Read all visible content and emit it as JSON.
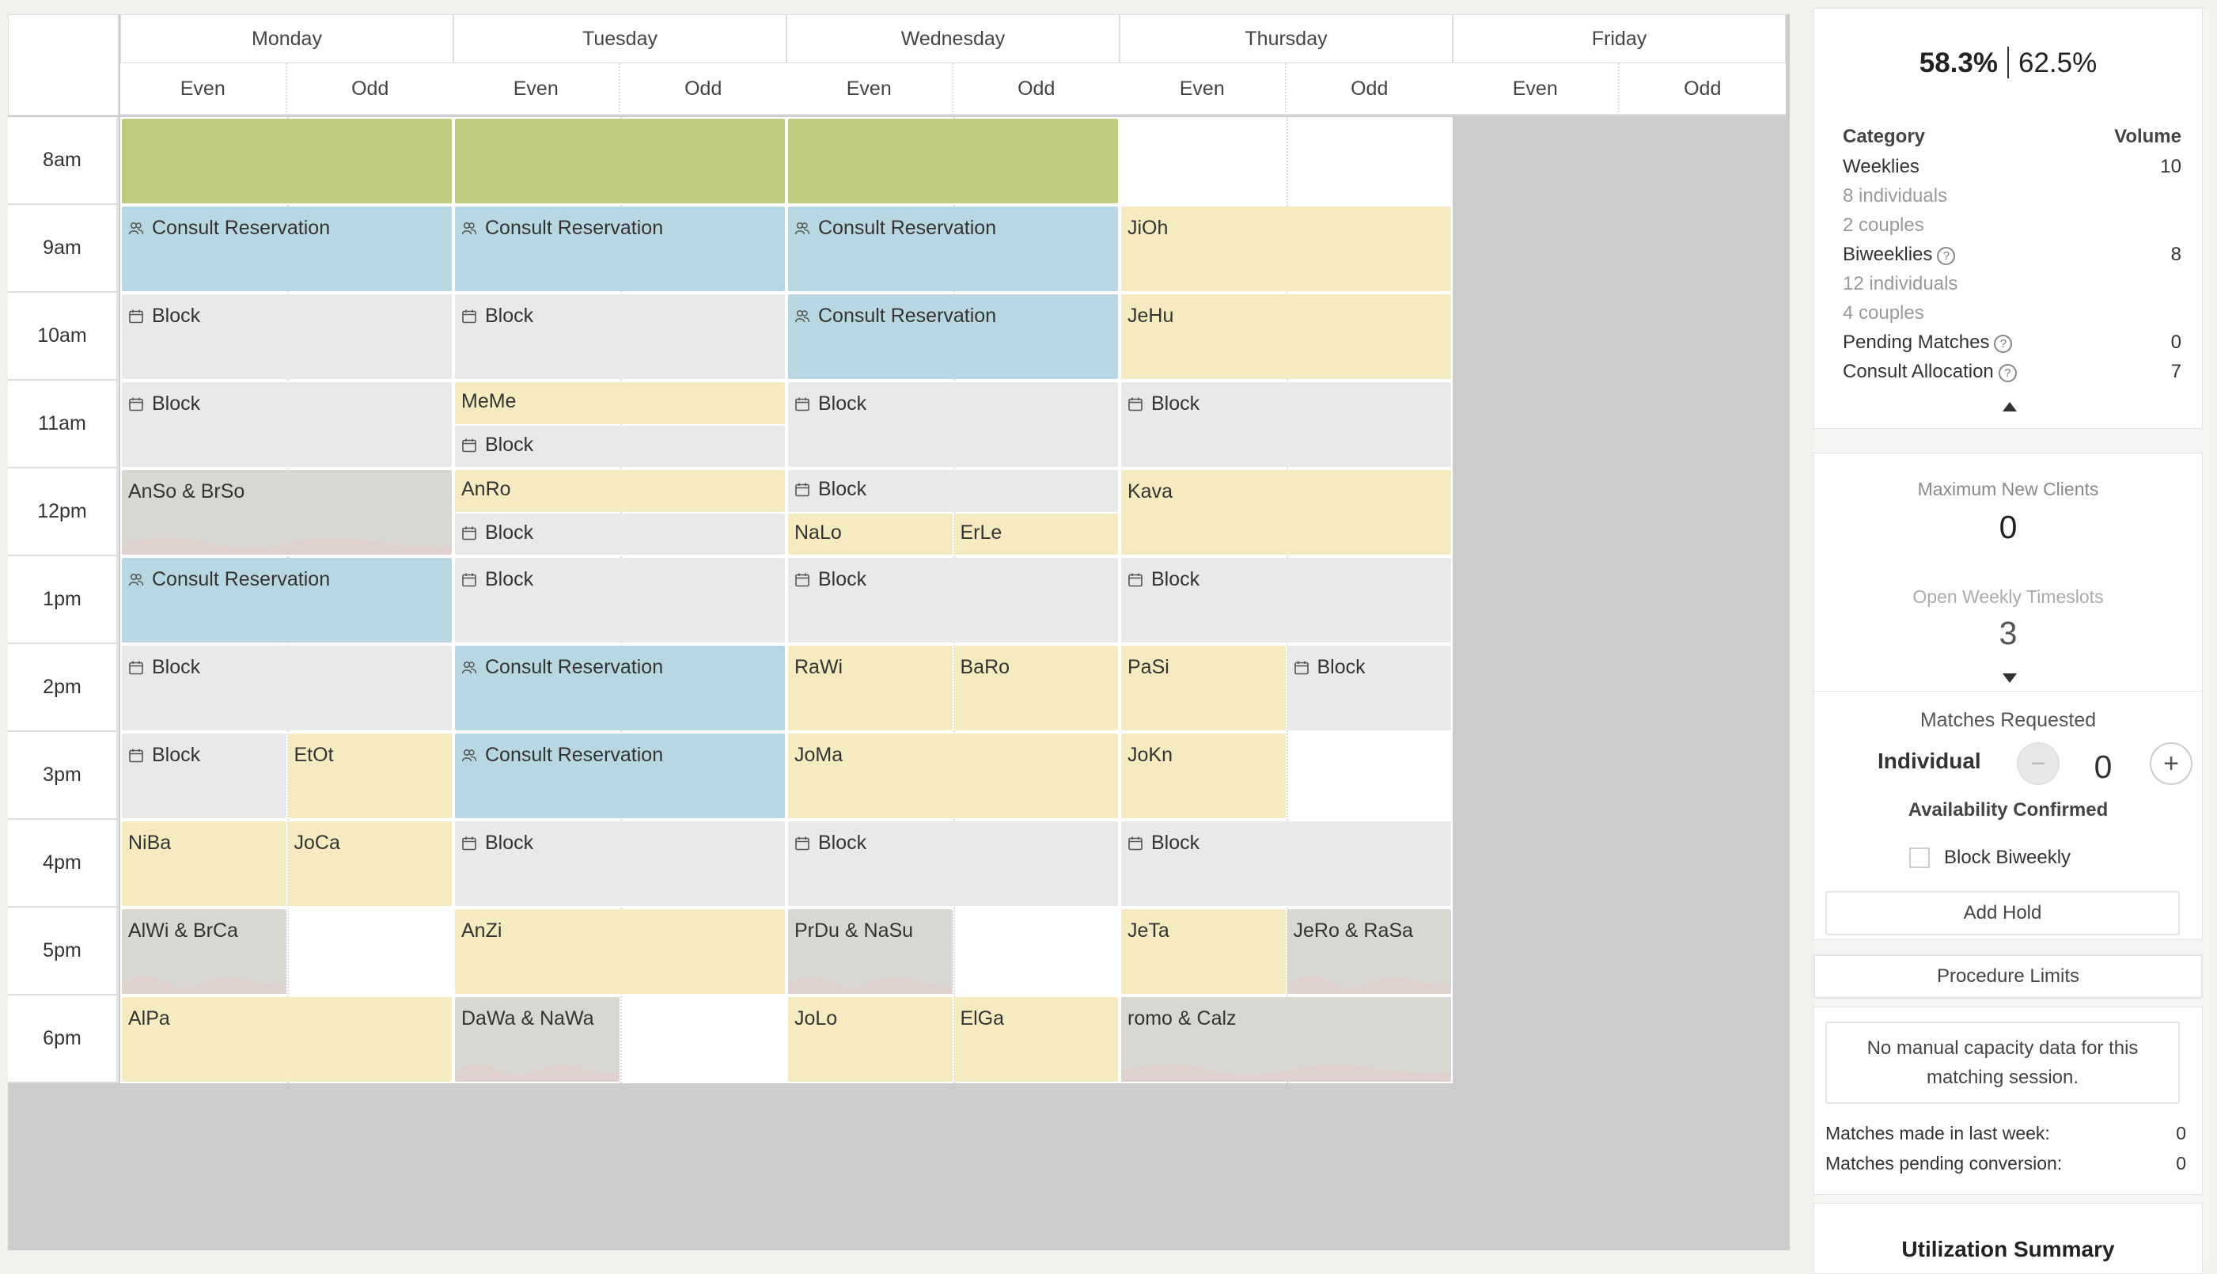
{
  "calendar": {
    "days": [
      "Monday",
      "Tuesday",
      "Wednesday",
      "Thursday",
      "Friday"
    ],
    "parity": [
      "Even",
      "Odd"
    ],
    "times": [
      "8am",
      "9am",
      "10am",
      "11am",
      "12pm",
      "1pm",
      "2pm",
      "3pm",
      "4pm",
      "5pm",
      "6pm"
    ],
    "events": [
      {
        "day": 0,
        "hour": 0,
        "span": "both",
        "type": "green",
        "label": ""
      },
      {
        "day": 1,
        "hour": 0,
        "span": "both",
        "type": "green",
        "label": ""
      },
      {
        "day": 2,
        "hour": 0,
        "span": "both",
        "type": "green",
        "label": ""
      },
      {
        "day": 0,
        "hour": 1,
        "span": "both",
        "type": "blue",
        "icon": "consult",
        "label": "Consult Reservation"
      },
      {
        "day": 1,
        "hour": 1,
        "span": "both",
        "type": "blue",
        "icon": "consult",
        "label": "Consult Reservation"
      },
      {
        "day": 2,
        "hour": 1,
        "span": "both",
        "type": "blue",
        "icon": "consult",
        "label": "Consult Reservation"
      },
      {
        "day": 3,
        "hour": 1,
        "span": "both",
        "type": "yellow",
        "label": "JiOh"
      },
      {
        "day": 0,
        "hour": 2,
        "span": "both",
        "type": "gray",
        "icon": "calendar",
        "label": "Block"
      },
      {
        "day": 1,
        "hour": 2,
        "span": "both",
        "type": "gray",
        "icon": "calendar",
        "label": "Block"
      },
      {
        "day": 2,
        "hour": 2,
        "span": "both",
        "type": "blue",
        "icon": "consult",
        "label": "Consult Reservation"
      },
      {
        "day": 3,
        "hour": 2,
        "span": "both",
        "type": "yellow",
        "label": "JeHu"
      },
      {
        "day": 0,
        "hour": 3,
        "span": "both",
        "type": "gray",
        "icon": "calendar",
        "label": "Block"
      },
      {
        "day": 1,
        "hour": 3,
        "span": "both",
        "half": "top",
        "type": "yellow",
        "label": "MeMe"
      },
      {
        "day": 1,
        "hour": 3,
        "span": "both",
        "half": "bottom",
        "type": "gray",
        "icon": "calendar",
        "label": "Block"
      },
      {
        "day": 2,
        "hour": 3,
        "span": "both",
        "type": "gray",
        "icon": "calendar",
        "label": "Block"
      },
      {
        "day": 3,
        "hour": 3,
        "span": "both",
        "type": "gray",
        "icon": "calendar",
        "label": "Block"
      },
      {
        "day": 0,
        "hour": 4,
        "span": "both",
        "type": "couple",
        "label": "AnSo & BrSo"
      },
      {
        "day": 1,
        "hour": 4,
        "span": "both",
        "half": "top",
        "type": "yellow",
        "label": "AnRo"
      },
      {
        "day": 1,
        "hour": 4,
        "span": "both",
        "half": "bottom",
        "type": "gray",
        "icon": "calendar",
        "label": "Block"
      },
      {
        "day": 2,
        "hour": 4,
        "span": "both",
        "half": "top",
        "type": "gray",
        "icon": "calendar",
        "label": "Block"
      },
      {
        "day": 2,
        "hour": 4,
        "span": "even",
        "half": "bottom",
        "type": "yellow",
        "label": "NaLo"
      },
      {
        "day": 2,
        "hour": 4,
        "span": "odd",
        "half": "bottom",
        "type": "yellow",
        "label": "ErLe"
      },
      {
        "day": 3,
        "hour": 4,
        "span": "both",
        "type": "yellow",
        "label": "Kava"
      },
      {
        "day": 0,
        "hour": 5,
        "span": "both",
        "type": "blue",
        "icon": "consult",
        "label": "Consult Reservation"
      },
      {
        "day": 1,
        "hour": 5,
        "span": "both",
        "type": "gray",
        "icon": "calendar",
        "label": "Block"
      },
      {
        "day": 2,
        "hour": 5,
        "span": "both",
        "type": "gray",
        "icon": "calendar",
        "label": "Block"
      },
      {
        "day": 3,
        "hour": 5,
        "span": "both",
        "type": "gray",
        "icon": "calendar",
        "label": "Block"
      },
      {
        "day": 0,
        "hour": 6,
        "span": "both",
        "type": "gray",
        "icon": "calendar",
        "label": "Block"
      },
      {
        "day": 1,
        "hour": 6,
        "span": "both",
        "type": "blue",
        "icon": "consult",
        "label": "Consult Reservation"
      },
      {
        "day": 2,
        "hour": 6,
        "span": "even",
        "type": "yellow",
        "label": "RaWi"
      },
      {
        "day": 2,
        "hour": 6,
        "span": "odd",
        "type": "yellow",
        "label": "BaRo"
      },
      {
        "day": 3,
        "hour": 6,
        "span": "even",
        "type": "yellow",
        "label": "PaSi"
      },
      {
        "day": 3,
        "hour": 6,
        "span": "odd",
        "type": "gray",
        "icon": "calendar",
        "label": "Block"
      },
      {
        "day": 0,
        "hour": 7,
        "span": "even",
        "type": "gray",
        "icon": "calendar",
        "label": "Block"
      },
      {
        "day": 0,
        "hour": 7,
        "span": "odd",
        "type": "yellow",
        "label": "EtOt"
      },
      {
        "day": 1,
        "hour": 7,
        "span": "both",
        "type": "blue",
        "icon": "consult",
        "label": "Consult Reservation"
      },
      {
        "day": 2,
        "hour": 7,
        "span": "both",
        "type": "yellow",
        "label": "JoMa"
      },
      {
        "day": 3,
        "hour": 7,
        "span": "even",
        "type": "yellow",
        "label": "JoKn"
      },
      {
        "day": 0,
        "hour": 8,
        "span": "even",
        "type": "yellow",
        "label": "NiBa"
      },
      {
        "day": 0,
        "hour": 8,
        "span": "odd",
        "type": "yellow",
        "label": "JoCa"
      },
      {
        "day": 1,
        "hour": 8,
        "span": "both",
        "type": "gray",
        "icon": "calendar",
        "label": "Block"
      },
      {
        "day": 2,
        "hour": 8,
        "span": "both",
        "type": "gray",
        "icon": "calendar",
        "label": "Block"
      },
      {
        "day": 3,
        "hour": 8,
        "span": "both",
        "type": "gray",
        "icon": "calendar",
        "label": "Block"
      },
      {
        "day": 0,
        "hour": 9,
        "span": "even",
        "type": "couple",
        "label": "AlWi & BrCa"
      },
      {
        "day": 1,
        "hour": 9,
        "span": "both",
        "type": "yellow",
        "label": "AnZi"
      },
      {
        "day": 2,
        "hour": 9,
        "span": "even",
        "type": "couple",
        "label": "PrDu & NaSu"
      },
      {
        "day": 3,
        "hour": 9,
        "span": "even",
        "type": "yellow",
        "label": "JeTa"
      },
      {
        "day": 3,
        "hour": 9,
        "span": "odd",
        "type": "couple",
        "label": "JeRo & RaSa"
      },
      {
        "day": 0,
        "hour": 10,
        "span": "both",
        "type": "yellow",
        "label": "AlPa"
      },
      {
        "day": 1,
        "hour": 10,
        "span": "even",
        "type": "couple",
        "label": "DaWa & NaWa"
      },
      {
        "day": 2,
        "hour": 10,
        "span": "even",
        "type": "yellow",
        "label": "JoLo"
      },
      {
        "day": 2,
        "hour": 10,
        "span": "odd",
        "type": "yellow",
        "label": "ElGa"
      },
      {
        "day": 3,
        "hour": 10,
        "span": "both",
        "type": "couple",
        "label": "romo & Calz"
      }
    ]
  },
  "summary": {
    "rate_primary": "58.3%",
    "rate_secondary": "62.5%",
    "col_category": "Category",
    "col_volume": "Volume",
    "weeklies_label": "Weeklies",
    "weeklies_value": "10",
    "weeklies_individuals": "8 individuals",
    "weeklies_couples": "2 couples",
    "biweeklies_label": "Biweeklies",
    "biweeklies_value": "8",
    "biweeklies_individuals": "12 individuals",
    "biweeklies_couples": "4 couples",
    "pending_label": "Pending Matches",
    "pending_value": "0",
    "consult_label": "Consult Allocation",
    "consult_value": "7"
  },
  "capacity": {
    "max_new_label": "Maximum New Clients",
    "max_new_value": "0",
    "open_slots_label": "Open Weekly Timeslots",
    "open_slots_value": "3"
  },
  "matches": {
    "title": "Matches Requested",
    "type_label": "Individual",
    "count": "0",
    "availability_label": "Availability Confirmed",
    "block_biweekly_label": "Block Biweekly",
    "block_biweekly_checked": false,
    "add_hold_label": "Add Hold"
  },
  "procedure_limits_label": "Procedure Limits",
  "manual": {
    "message": "No manual capacity data for this matching session.",
    "made_last_week_label": "Matches made in last week:",
    "made_last_week_value": "0",
    "pending_conversion_label": "Matches pending conversion:",
    "pending_conversion_value": "0"
  },
  "utilization_title": "Utilization Summary",
  "colors": {
    "green": "#bfcb7e",
    "blue": "#b9d7e2",
    "gray": "#e9e9e9",
    "yellow": "#f6eac0",
    "couple": "#d9d7d2",
    "canvas": "#cccccc"
  },
  "icons": {
    "consult": "people-icon",
    "calendar": "calendar-icon",
    "help": "help-circle-icon"
  }
}
